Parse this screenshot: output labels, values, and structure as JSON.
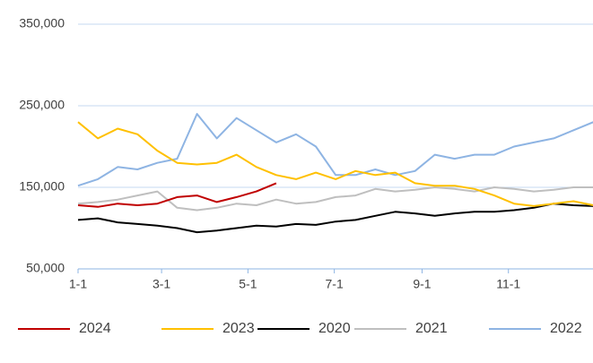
{
  "chart_data": {
    "type": "line",
    "x": [
      0,
      14,
      28,
      42,
      56,
      70,
      84,
      98,
      112,
      126,
      140,
      154,
      168,
      182,
      196,
      210,
      224,
      238,
      252,
      266,
      280,
      294,
      308,
      322,
      336,
      350,
      364
    ],
    "xlim": [
      0,
      365
    ],
    "xticks": [
      {
        "value": 0,
        "label": "1-1"
      },
      {
        "value": 59,
        "label": "3-1"
      },
      {
        "value": 120,
        "label": "5-1"
      },
      {
        "value": 181,
        "label": "7-1"
      },
      {
        "value": 243,
        "label": "9-1"
      },
      {
        "value": 304,
        "label": "11-1"
      }
    ],
    "ylim": [
      50000,
      350000
    ],
    "yticks": [
      {
        "value": 50000,
        "label": "50,000"
      },
      {
        "value": 150000,
        "label": "150,000"
      },
      {
        "value": 250000,
        "label": "250,000"
      },
      {
        "value": 350000,
        "label": "350,000"
      }
    ],
    "grid": true,
    "legend": "bottom",
    "series": [
      {
        "name": "2024",
        "color": "#c00000",
        "values": [
          128000,
          126000,
          130000,
          128000,
          130000,
          138000,
          140000,
          132000,
          138000,
          145000,
          155000,
          null,
          null,
          null,
          null,
          null,
          null,
          null,
          null,
          null,
          null,
          null,
          null,
          null,
          null,
          null,
          null
        ]
      },
      {
        "name": "2023",
        "color": "#ffc000",
        "values": [
          230000,
          210000,
          222000,
          215000,
          195000,
          180000,
          178000,
          180000,
          190000,
          175000,
          165000,
          160000,
          168000,
          160000,
          170000,
          165000,
          168000,
          155000,
          152000,
          152000,
          148000,
          140000,
          130000,
          127000,
          130000,
          133000,
          128000
        ]
      },
      {
        "name": "2020",
        "color": "#000000",
        "values": [
          110000,
          112000,
          107000,
          105000,
          103000,
          100000,
          95000,
          97000,
          100000,
          103000,
          102000,
          105000,
          104000,
          108000,
          110000,
          115000,
          120000,
          118000,
          115000,
          118000,
          120000,
          120000,
          122000,
          125000,
          130000,
          128000,
          127000
        ]
      },
      {
        "name": "2021",
        "color": "#bfbfbf",
        "values": [
          130000,
          132000,
          135000,
          140000,
          145000,
          125000,
          122000,
          125000,
          130000,
          128000,
          135000,
          130000,
          132000,
          138000,
          140000,
          148000,
          145000,
          147000,
          150000,
          148000,
          145000,
          150000,
          148000,
          145000,
          147000,
          150000,
          150000
        ]
      },
      {
        "name": "2022",
        "color": "#8eb4e3",
        "values": [
          152000,
          160000,
          175000,
          172000,
          180000,
          185000,
          240000,
          210000,
          235000,
          220000,
          205000,
          215000,
          200000,
          165000,
          165000,
          172000,
          165000,
          170000,
          190000,
          185000,
          190000,
          190000,
          200000,
          205000,
          210000,
          220000,
          230000
        ]
      }
    ]
  }
}
